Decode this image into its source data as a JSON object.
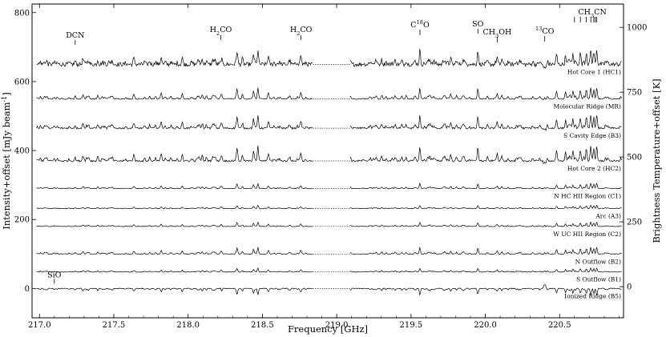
{
  "chart_data": {
    "type": "line",
    "xlabel": "Frequency [GHz]",
    "ylabel": "Intensity+offset [mJy beam$^{-1}$]",
    "ylabel_right": "Brightness Temperature+offset [K]",
    "xlim": [
      216.95,
      220.93
    ],
    "ylim": [
      -85,
      825
    ],
    "ylim_right": [
      -120,
      1090
    ],
    "gap": [
      218.84,
      219.09
    ],
    "x_ticks": [
      217.0,
      217.5,
      218.0,
      218.5,
      219.0,
      219.5,
      220.0,
      220.5
    ],
    "x_tick_labels": [
      "217.0",
      "217.5",
      "218.0",
      "218.5",
      "219.0",
      "219.5",
      "220.0",
      "220.5"
    ],
    "y_ticks": [
      0,
      200,
      400,
      600,
      800
    ],
    "y_tick_labels": [
      "0",
      "200",
      "400",
      "600",
      "800"
    ],
    "y2_ticks": [
      0,
      250,
      500,
      750,
      1000
    ],
    "y2_tick_labels": [
      "0",
      "250",
      "500",
      "750",
      "1000"
    ],
    "series": [
      {
        "name": "Hot Core 1 (HC1)",
        "offset": 650,
        "noise": 6,
        "scale": 0.55,
        "strength": 1.0,
        "absorb": 0.35
      },
      {
        "name": "Molecular Ridge (MR)",
        "offset": 550,
        "noise": 1.5,
        "scale": 0.6,
        "strength": 0.7,
        "absorb": 0.2
      },
      {
        "name": "S Cavity Edge (B3)",
        "offset": 465,
        "noise": 2.5,
        "scale": 0.6,
        "strength": 0.8,
        "absorb": 0.25
      },
      {
        "name": "Hot Core 2 (HC2)",
        "offset": 370,
        "noise": 2.5,
        "scale": 0.65,
        "strength": 0.85,
        "absorb": 0.3
      },
      {
        "name": "N HC HII Region (C1)",
        "offset": 290,
        "noise": 0.8,
        "scale": 0.55,
        "strength": 0.35,
        "absorb": 0.15
      },
      {
        "name": "Arc (A3)",
        "offset": 232,
        "noise": 0.8,
        "scale": 0.4,
        "strength": 0.3,
        "absorb": 0.12
      },
      {
        "name": "W UC HII Region (C2)",
        "offset": 180,
        "noise": 0.8,
        "scale": 0.45,
        "strength": 0.35,
        "absorb": 0.15
      },
      {
        "name": "N Outflow (B2)",
        "offset": 100,
        "noise": 0.9,
        "scale": 0.55,
        "strength": 0.45,
        "absorb": 0.15
      },
      {
        "name": "S Outflow (B1)",
        "offset": 48,
        "noise": 0.9,
        "scale": 0.35,
        "strength": 0.4,
        "absorb": 0.1
      },
      {
        "name": "Ionized Ridge (B5)",
        "offset": 0,
        "noise": 1.0,
        "scale": -0.4,
        "strength": 0.6,
        "absorb": 0.5
      }
    ],
    "annotations": [
      {
        "label": "DCN",
        "x": 217.24
      },
      {
        "label": "H$_2$CO",
        "x": 218.22
      },
      {
        "label": "H$_2$CO",
        "x": 218.76
      },
      {
        "label": "C$^{18}$O",
        "x": 219.56
      },
      {
        "label": "SO",
        "x": 219.95
      },
      {
        "label": "CH$_3$OH",
        "x": 220.08
      },
      {
        "label": "$^{13}$CO",
        "x": 220.4
      },
      {
        "label": "CH$_3$CN",
        "x": 220.72
      },
      {
        "label": "SiO",
        "x": 217.1
      }
    ]
  }
}
